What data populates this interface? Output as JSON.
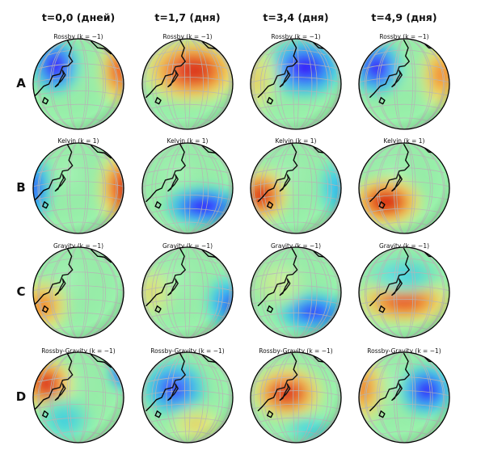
{
  "columns": [
    {
      "label": "t=0,0 (дней)"
    },
    {
      "label": "t=1,7 (дня)"
    },
    {
      "label": "t=3,4 (дня)"
    },
    {
      "label": "t=4,9 (дня)"
    }
  ],
  "rows": [
    {
      "label": "A",
      "panel_title": "Rossby (k = −1)",
      "blobs": [
        [
          {
            "fx": 0.25,
            "fy": 0.3,
            "rx": 0.26,
            "ry": 0.3,
            "v": 0.0
          },
          {
            "fx": 0.95,
            "fy": 0.35,
            "rx": 0.22,
            "ry": 0.4,
            "v": 0.88
          }
        ],
        [
          {
            "fx": 0.55,
            "fy": 0.35,
            "rx": 0.55,
            "ry": 0.36,
            "v": 0.96
          }
        ],
        [
          {
            "fx": 0.6,
            "fy": 0.32,
            "rx": 0.42,
            "ry": 0.32,
            "v": 0.02
          },
          {
            "fx": 0.05,
            "fy": 0.45,
            "rx": 0.25,
            "ry": 0.4,
            "v": 0.65
          }
        ],
        [
          {
            "fx": 0.2,
            "fy": 0.32,
            "rx": 0.28,
            "ry": 0.3,
            "v": 0.02
          },
          {
            "fx": 0.92,
            "fy": 0.4,
            "rx": 0.25,
            "ry": 0.4,
            "v": 0.8
          }
        ]
      ]
    },
    {
      "label": "B",
      "panel_title": "Kelvin (k = 1)",
      "blobs": [
        [
          {
            "fx": 0.02,
            "fy": 0.5,
            "rx": 0.18,
            "ry": 0.4,
            "v": 0.12
          },
          {
            "fx": 0.98,
            "fy": 0.5,
            "rx": 0.26,
            "ry": 0.45,
            "v": 0.92
          }
        ],
        [
          {
            "fx": 0.68,
            "fy": 0.7,
            "rx": 0.42,
            "ry": 0.22,
            "v": 0.02
          }
        ],
        [
          {
            "fx": 0.12,
            "fy": 0.58,
            "rx": 0.3,
            "ry": 0.3,
            "v": 0.95
          },
          {
            "fx": 0.95,
            "fy": 0.5,
            "rx": 0.2,
            "ry": 0.35,
            "v": 0.25
          }
        ],
        [
          {
            "fx": 0.3,
            "fy": 0.65,
            "rx": 0.4,
            "ry": 0.28,
            "v": 0.98
          }
        ]
      ]
    },
    {
      "label": "C",
      "panel_title": "Gravity (k = −1)",
      "blobs": [
        [
          {
            "fx": 0.1,
            "fy": 0.65,
            "rx": 0.3,
            "ry": 0.3,
            "v": 0.8
          }
        ],
        [
          {
            "fx": 0.95,
            "fy": 0.62,
            "rx": 0.25,
            "ry": 0.3,
            "v": 0.15
          },
          {
            "fx": 0.1,
            "fy": 0.5,
            "rx": 0.25,
            "ry": 0.3,
            "v": 0.62
          }
        ],
        [
          {
            "fx": 0.7,
            "fy": 0.72,
            "rx": 0.4,
            "ry": 0.22,
            "v": 0.08
          },
          {
            "fx": 0.3,
            "fy": 0.4,
            "rx": 0.3,
            "ry": 0.25,
            "v": 0.55
          }
        ],
        [
          {
            "fx": 0.5,
            "fy": 0.6,
            "rx": 0.55,
            "ry": 0.26,
            "v": 0.88
          },
          {
            "fx": 0.5,
            "fy": 0.3,
            "rx": 0.4,
            "ry": 0.2,
            "v": 0.3
          }
        ]
      ]
    },
    {
      "label": "D",
      "panel_title": "Rossby-Gravity (k = −1)",
      "blobs": [
        [
          {
            "fx": 0.15,
            "fy": 0.35,
            "rx": 0.3,
            "ry": 0.3,
            "v": 0.96
          },
          {
            "fx": 0.98,
            "fy": 0.22,
            "rx": 0.14,
            "ry": 0.2,
            "v": 0.02
          },
          {
            "fx": 0.35,
            "fy": 0.75,
            "rx": 0.3,
            "ry": 0.25,
            "v": 0.3
          }
        ],
        [
          {
            "fx": 0.35,
            "fy": 0.4,
            "rx": 0.35,
            "ry": 0.3,
            "v": 0.08
          },
          {
            "fx": 0.6,
            "fy": 0.8,
            "rx": 0.3,
            "ry": 0.2,
            "v": 0.65
          }
        ],
        [
          {
            "fx": 0.4,
            "fy": 0.45,
            "rx": 0.4,
            "ry": 0.3,
            "v": 0.95
          },
          {
            "fx": 0.65,
            "fy": 0.85,
            "rx": 0.3,
            "ry": 0.15,
            "v": 0.3
          }
        ],
        [
          {
            "fx": 0.75,
            "fy": 0.42,
            "rx": 0.3,
            "ry": 0.28,
            "v": 0.04
          },
          {
            "fx": 0.05,
            "fy": 0.4,
            "rx": 0.25,
            "ry": 0.4,
            "v": 0.8
          }
        ]
      ]
    }
  ],
  "colors": {
    "background_level": 0.45,
    "colormap": [
      "#3000ff",
      "#3b7bff",
      "#39d2e8",
      "#8ff2b0",
      "#d3f08c",
      "#f5c24b",
      "#f36a2a",
      "#d81e0c"
    ],
    "coast": "#000000",
    "grid": "#b8b8b8",
    "rim": "#000000"
  }
}
